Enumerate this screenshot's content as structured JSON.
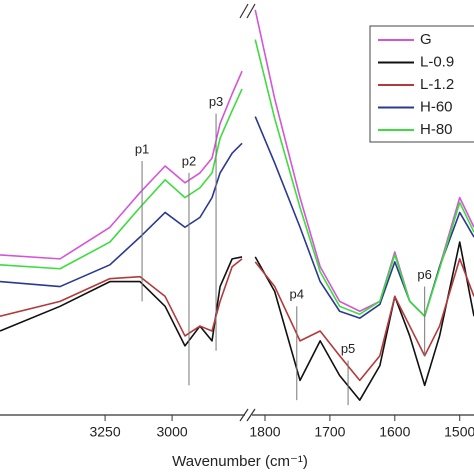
{
  "chart_data": {
    "type": "line",
    "xlabel": "Wavenumber (cm⁻¹)",
    "x": [
      3642,
      3418,
      3232,
      3120,
      3026,
      2952,
      2896,
      2851,
      2821,
      2776,
      2739,
      1815,
      1785,
      1746,
      1715,
      1685,
      1654,
      1623,
      1600,
      1577,
      1554,
      1531,
      1500,
      1478
    ],
    "panels": [
      {
        "xlim": [
          3642,
          2728
        ],
        "xticks": [
          3250,
          3000
        ]
      },
      {
        "xlim": [
          1820,
          1478
        ],
        "xticks": [
          1800,
          1700,
          1600,
          1500
        ]
      }
    ],
    "ylim": [
      0,
      420
    ],
    "legend": "upper right",
    "series": [
      {
        "name": "G",
        "color": "#d655d6",
        "values": [
          162,
          158,
          190,
          225,
          252,
          235,
          245,
          260,
          295,
          325,
          348,
          410,
          320,
          220,
          150,
          115,
          105,
          115,
          165,
          115,
          100,
          150,
          220,
          190
        ]
      },
      {
        "name": "L-0.9",
        "color": "#111111",
        "values": [
          85,
          110,
          135,
          135,
          110,
          70,
          90,
          75,
          130,
          158,
          160,
          160,
          125,
          35,
          75,
          40,
          15,
          50,
          120,
          80,
          30,
          80,
          175,
          100
        ]
      },
      {
        "name": "L-1.2",
        "color": "#b33a3a",
        "values": [
          100,
          115,
          138,
          140,
          120,
          80,
          90,
          85,
          115,
          150,
          158,
          155,
          130,
          75,
          85,
          60,
          35,
          60,
          120,
          90,
          60,
          90,
          158,
          120
        ]
      },
      {
        "name": "H-60",
        "color": "#2b3990",
        "values": [
          135,
          130,
          152,
          180,
          205,
          190,
          200,
          220,
          245,
          265,
          275,
          302,
          255,
          190,
          135,
          105,
          98,
          112,
          155,
          115,
          100,
          150,
          205,
          180
        ]
      },
      {
        "name": "H-80",
        "color": "#3fdc3f",
        "values": [
          152,
          148,
          175,
          210,
          238,
          220,
          230,
          245,
          280,
          308,
          330,
          380,
          300,
          210,
          145,
          110,
          102,
          115,
          162,
          115,
          100,
          148,
          215,
          185
        ]
      }
    ],
    "annotations": [
      {
        "text": "p1",
        "x": 3112,
        "y": [
          115,
          257
        ]
      },
      {
        "text": "p2",
        "x": 2937,
        "y": [
          30,
          245
        ]
      },
      {
        "text": "p3",
        "x": 2836,
        "y": [
          65,
          305
        ]
      },
      {
        "text": "p4",
        "x": 1751,
        "y": [
          15,
          110
        ]
      },
      {
        "text": "p5",
        "x": 1672,
        "y": [
          10,
          55
        ]
      },
      {
        "text": "p6",
        "x": 1554,
        "y": [
          60,
          130
        ]
      }
    ]
  }
}
